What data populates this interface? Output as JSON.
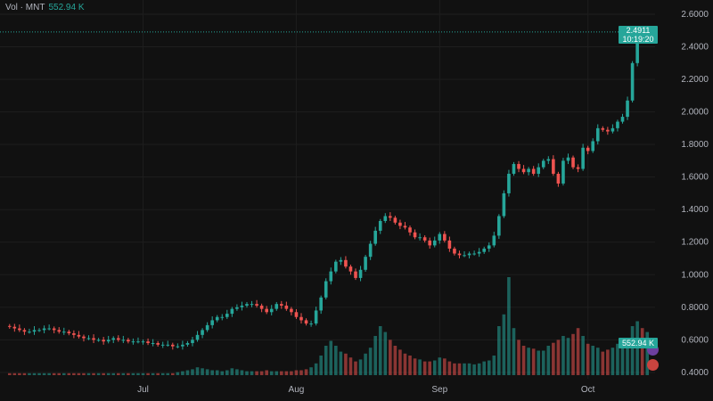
{
  "header": {
    "label": "Vol · MNT",
    "value": "552.94 K"
  },
  "last_price": {
    "price": "2.4911",
    "time": "10:19:20"
  },
  "volume_tag": "552.94 K",
  "colors": {
    "up": "#26a69a",
    "down": "#ef5350",
    "bg": "#111111",
    "grid": "#1e1e1e",
    "text": "#b2b5be"
  },
  "chart_data": {
    "type": "candlestick",
    "x_ticks": [
      "Jul",
      "Aug",
      "Sep",
      "Oct"
    ],
    "y_ticks": [
      "2.6000",
      "2.4000",
      "2.2000",
      "2.0000",
      "1.8000",
      "1.6000",
      "1.4000",
      "1.2000",
      "1.0000",
      "0.8000",
      "0.6000",
      "0.4000"
    ],
    "ylim": [
      0.35,
      2.6
    ],
    "last_price": 2.4911,
    "last_volume": "552.94 K",
    "closes": [
      0.68,
      0.67,
      0.66,
      0.65,
      0.65,
      0.66,
      0.66,
      0.67,
      0.67,
      0.66,
      0.65,
      0.65,
      0.64,
      0.63,
      0.62,
      0.61,
      0.61,
      0.6,
      0.6,
      0.59,
      0.6,
      0.61,
      0.6,
      0.6,
      0.59,
      0.59,
      0.59,
      0.59,
      0.58,
      0.58,
      0.57,
      0.57,
      0.57,
      0.56,
      0.56,
      0.57,
      0.58,
      0.6,
      0.63,
      0.66,
      0.69,
      0.72,
      0.74,
      0.74,
      0.76,
      0.79,
      0.8,
      0.81,
      0.82,
      0.82,
      0.81,
      0.79,
      0.77,
      0.79,
      0.82,
      0.81,
      0.79,
      0.77,
      0.74,
      0.72,
      0.7,
      0.7,
      0.78,
      0.86,
      0.96,
      1.02,
      1.08,
      1.09,
      1.05,
      1.02,
      0.98,
      1.03,
      1.11,
      1.19,
      1.27,
      1.33,
      1.36,
      1.35,
      1.32,
      1.3,
      1.29,
      1.26,
      1.23,
      1.23,
      1.21,
      1.18,
      1.21,
      1.25,
      1.21,
      1.16,
      1.13,
      1.12,
      1.12,
      1.13,
      1.13,
      1.14,
      1.16,
      1.18,
      1.24,
      1.36,
      1.5,
      1.62,
      1.68,
      1.65,
      1.63,
      1.65,
      1.62,
      1.66,
      1.7,
      1.71,
      1.62,
      1.56,
      1.7,
      1.72,
      1.66,
      1.65,
      1.78,
      1.76,
      1.82,
      1.9,
      1.89,
      1.88,
      1.9,
      1.94,
      1.97,
      2.07,
      2.3,
      2.49,
      2.47,
      2.49
    ],
    "volumes": [
      0.02,
      0.02,
      0.02,
      0.02,
      0.02,
      0.02,
      0.02,
      0.02,
      0.02,
      0.02,
      0.02,
      0.02,
      0.02,
      0.02,
      0.02,
      0.02,
      0.02,
      0.02,
      0.02,
      0.02,
      0.02,
      0.02,
      0.02,
      0.02,
      0.02,
      0.02,
      0.02,
      0.02,
      0.02,
      0.02,
      0.02,
      0.02,
      0.02,
      0.02,
      0.03,
      0.04,
      0.05,
      0.06,
      0.08,
      0.07,
      0.06,
      0.05,
      0.05,
      0.04,
      0.05,
      0.07,
      0.06,
      0.05,
      0.04,
      0.04,
      0.04,
      0.04,
      0.05,
      0.04,
      0.04,
      0.04,
      0.04,
      0.04,
      0.05,
      0.05,
      0.06,
      0.08,
      0.12,
      0.2,
      0.3,
      0.35,
      0.3,
      0.24,
      0.22,
      0.18,
      0.14,
      0.16,
      0.22,
      0.28,
      0.4,
      0.5,
      0.44,
      0.36,
      0.3,
      0.26,
      0.22,
      0.2,
      0.17,
      0.16,
      0.14,
      0.14,
      0.15,
      0.18,
      0.17,
      0.14,
      0.12,
      0.12,
      0.12,
      0.12,
      0.11,
      0.12,
      0.14,
      0.15,
      0.2,
      0.5,
      0.62,
      1.0,
      0.48,
      0.36,
      0.3,
      0.28,
      0.27,
      0.25,
      0.25,
      0.3,
      0.33,
      0.36,
      0.4,
      0.38,
      0.42,
      0.48,
      0.4,
      0.32,
      0.3,
      0.28,
      0.24,
      0.26,
      0.28,
      0.32,
      0.36,
      0.38,
      0.5,
      0.55,
      0.48,
      0.44
    ]
  }
}
